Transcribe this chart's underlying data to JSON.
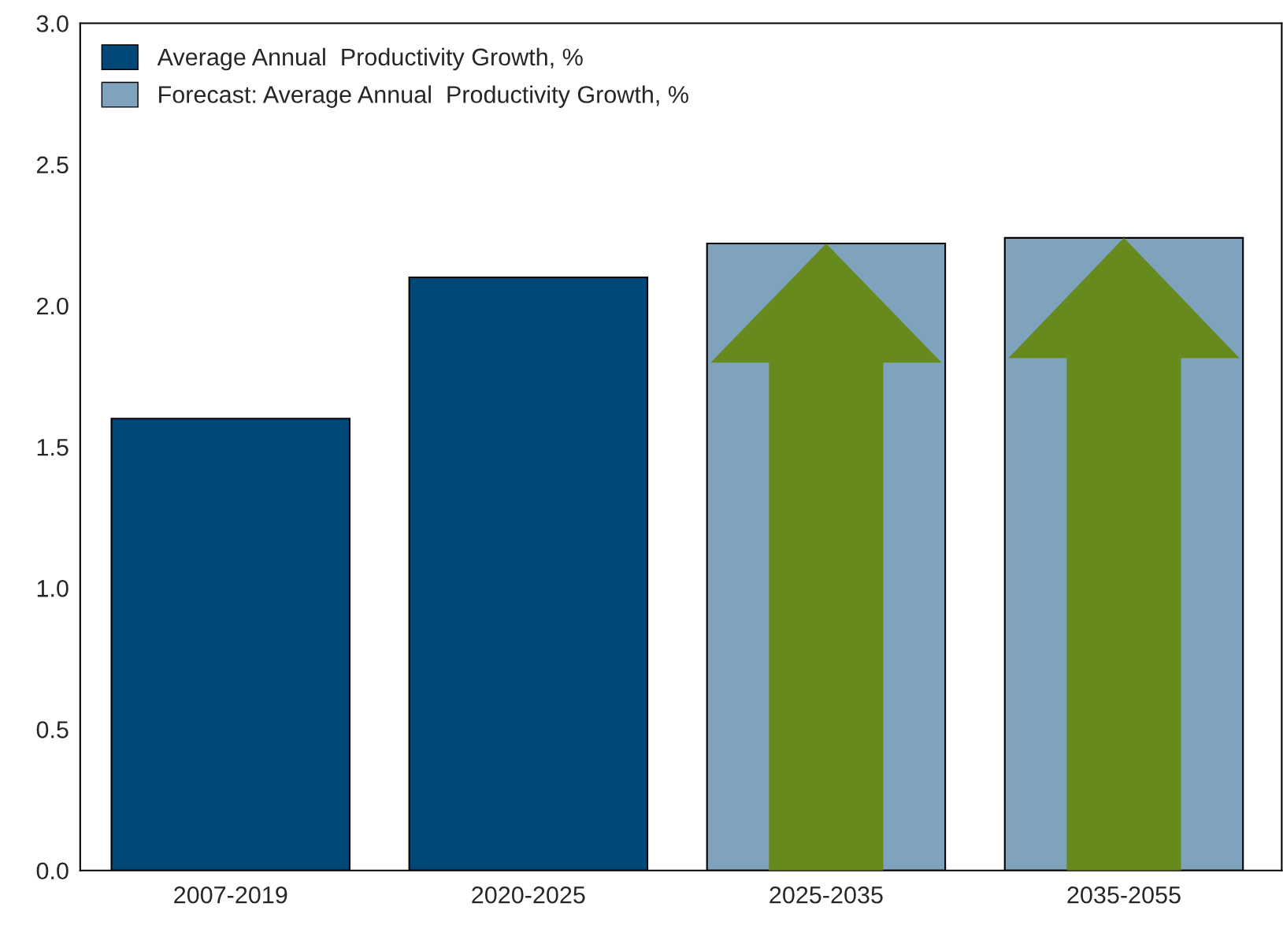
{
  "chart_data": {
    "type": "bar",
    "categories": [
      "2007-2019",
      "2020-2025",
      "2025-2035",
      "2035-2055"
    ],
    "series": [
      {
        "name": "Average Annual  Productivity Growth, %",
        "color": "#004878",
        "values": [
          1.6,
          2.1,
          null,
          null
        ]
      },
      {
        "name": "Forecast: Average Annual  Productivity Growth, %",
        "color": "#7fa3bd",
        "values": [
          null,
          null,
          2.22,
          2.24
        ]
      }
    ],
    "ylim": [
      0,
      3.0
    ],
    "yticks": [
      "0.0",
      0.5,
      "1.0",
      1.5,
      "2.0",
      2.5,
      "3.0"
    ],
    "grid": false,
    "legend": "top left"
  }
}
